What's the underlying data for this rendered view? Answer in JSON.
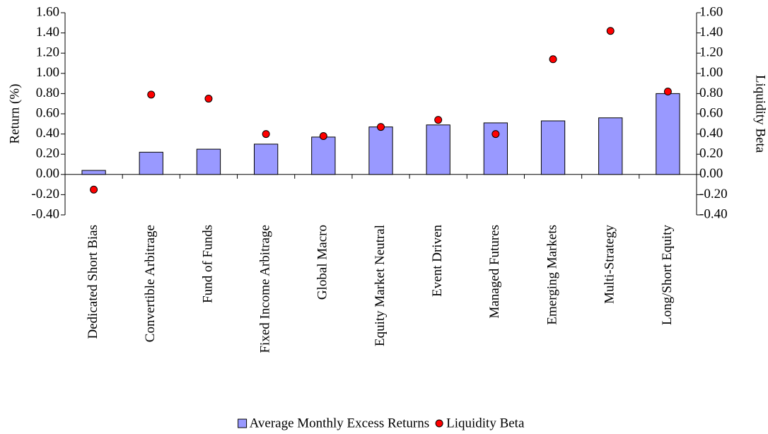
{
  "chart_data": {
    "type": "bar",
    "y_label": "Return (%)",
    "y2_label": "Liquidity Beta",
    "categories": [
      "Dedicated Short Bias",
      "Convertible Arbitrage",
      "Fund of Funds",
      "Fixed Income Arbitrage",
      "Global Macro",
      "Equity Market Neutral",
      "Event Driven",
      "Managed Futures",
      "Emerging Markets",
      "Multi-Strategy",
      "Long/Short Equity"
    ],
    "series": [
      {
        "name": "Average Monthly Excess Returns",
        "type": "bar",
        "color": "#9999ff",
        "values": [
          0.04,
          0.22,
          0.25,
          0.3,
          0.37,
          0.47,
          0.49,
          0.51,
          0.53,
          0.56,
          0.8
        ]
      },
      {
        "name": "Liquidity Beta",
        "type": "scatter",
        "axis": "y2",
        "color": "#ff0000",
        "values": [
          -0.15,
          0.79,
          0.75,
          0.4,
          0.38,
          0.47,
          0.54,
          0.4,
          1.14,
          1.42,
          0.82
        ]
      }
    ],
    "ylim": [
      -0.4,
      1.6
    ],
    "yticks": [
      {
        "value": -0.4,
        "label": "-0.40"
      },
      {
        "value": -0.2,
        "label": "-0.20"
      },
      {
        "value": 0,
        "label": "0.00"
      },
      {
        "value": 0.2,
        "label": "0.20"
      },
      {
        "value": 0.4,
        "label": "0.40"
      },
      {
        "value": 0.6,
        "label": "0.60"
      },
      {
        "value": 0.8,
        "label": "0.80"
      },
      {
        "value": 1.0,
        "label": "1.00"
      },
      {
        "value": 1.2,
        "label": "1.20"
      },
      {
        "value": 1.4,
        "label": "1.40"
      },
      {
        "value": 1.6,
        "label": "1.60"
      }
    ],
    "y2lim": [
      -0.4,
      1.6
    ],
    "y2ticks": [
      {
        "value": -0.4,
        "label": "-0.40"
      },
      {
        "value": -0.2,
        "label": "-0.20"
      },
      {
        "value": 0,
        "label": "0.00"
      },
      {
        "value": 0.2,
        "label": "0.20"
      },
      {
        "value": 0.4,
        "label": "0.40"
      },
      {
        "value": 0.6,
        "label": "0.60"
      },
      {
        "value": 0.8,
        "label": "0.80"
      },
      {
        "value": 1.0,
        "label": "1.00"
      },
      {
        "value": 1.2,
        "label": "1.20"
      },
      {
        "value": 1.4,
        "label": "1.40"
      },
      {
        "value": 1.6,
        "label": "1.60"
      }
    ],
    "legend": "bottom"
  }
}
